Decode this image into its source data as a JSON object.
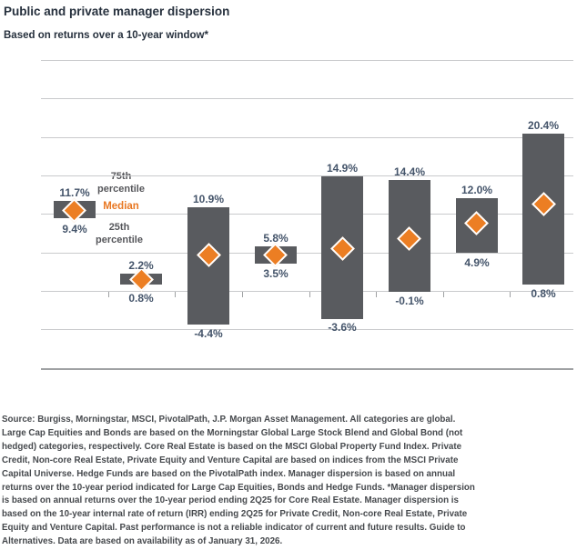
{
  "header": {
    "title": "Public and private manager dispersion",
    "subtitle": "Based on returns over a 10-year window*"
  },
  "chart_data": {
    "type": "bar",
    "subtype": "floating-range-bars-with-median-diamond",
    "title": "Public and private manager dispersion",
    "subtitle": "Based on returns over a 10-year window*",
    "ylim": [
      -10,
      30
    ],
    "gridline_step": 5,
    "grid": true,
    "y_axis_tick_labels_visible": false,
    "x_axis_category_labels_visible": false,
    "marker_legend": {
      "p75": "75th percentile",
      "median": "Median",
      "p25": "25th percentile"
    },
    "bars": [
      {
        "p75": 11.7,
        "median": 10.5,
        "p25": 9.4,
        "p75_label": "11.7%",
        "p25_label": "9.4%"
      },
      {
        "p75": 2.2,
        "median": 1.5,
        "p25": 0.8,
        "p75_label": "2.2%",
        "p25_label": "0.8%"
      },
      {
        "p75": 10.9,
        "median": 4.7,
        "p25": -4.4,
        "p75_label": "10.9%",
        "p25_label": "-4.4%"
      },
      {
        "p75": 5.8,
        "median": 4.7,
        "p25": 3.5,
        "p75_label": "5.8%",
        "p25_label": "3.5%"
      },
      {
        "p75": 14.9,
        "median": 5.5,
        "p25": -3.6,
        "p75_label": "14.9%",
        "p25_label": "-3.6%"
      },
      {
        "p75": 14.4,
        "median": 6.8,
        "p25": -0.1,
        "p75_label": "14.4%",
        "p25_label": "-0.1%"
      },
      {
        "p75": 12.0,
        "median": 8.8,
        "p25": 4.9,
        "p75_label": "12.0%",
        "p25_label": "4.9%"
      },
      {
        "p75": 20.4,
        "median": 11.3,
        "p25": 0.8,
        "p75_label": "20.4%",
        "p25_label": "0.8%"
      }
    ]
  },
  "annotations": {
    "p75": "75th\npercentile",
    "median": "Median",
    "p25": "25th\npercentile"
  },
  "footnote": {
    "text": "Source: Burgiss, Morningstar, MSCI, PivotalPath, J.P. Morgan Asset Management. All categories are global.\nLarge Cap Equities and Bonds are based on the Morningstar Global Large Stock Blend and Global Bond (not\nhedged) categories, respectively. Core Real Estate is based on the MSCI Global Property Fund Index. Private\nCredit, Non-core Real Estate, Private Equity and Venture Capital are based on indices from the MSCI Private\nCapital Universe. Hedge Funds are based on the PivotalPath index. Manager dispersion is based on annual\nreturns over the 10-year period indicated for Large Cap Equities, Bonds and Hedge Funds. *Manager dispersion\nis based on annual returns over the 10-year period ending 2Q25 for Core Real Estate. Manager dispersion is\nbased on the 10-year internal rate of return (IRR) ending 2Q25 for Private Credit, Non-core Real Estate, Private\nEquity and Venture Capital. Past performance is not a reliable indicator of current and future results. Guide to\nAlternatives. Data are based on availability as of January 31, 2026."
  },
  "colors": {
    "background": "#FFFFFF",
    "bar": "#595B5F",
    "median_diamond": "#EC7E23",
    "value_label": "#44546A",
    "annotation_gray": "#55565A",
    "median_label": "#E87722",
    "gridline": "#C9CACC",
    "axis_line": "#9FA1A3",
    "title": "#26303D",
    "footnote_text": "#46494D"
  }
}
